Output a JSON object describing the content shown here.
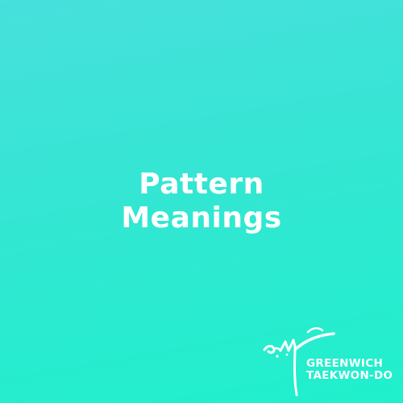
{
  "page": {
    "background_start": "#47e0dc",
    "background_end": "#1ff0cc",
    "text_color": "#ffffff"
  },
  "title": {
    "line1": "Pattern",
    "line2": "Meanings"
  },
  "logo": {
    "name_line1": "GREENWICH",
    "name_line2": "TAEKWON-DO",
    "mark_icon": "kicking-figure-calligraphy-icon"
  }
}
